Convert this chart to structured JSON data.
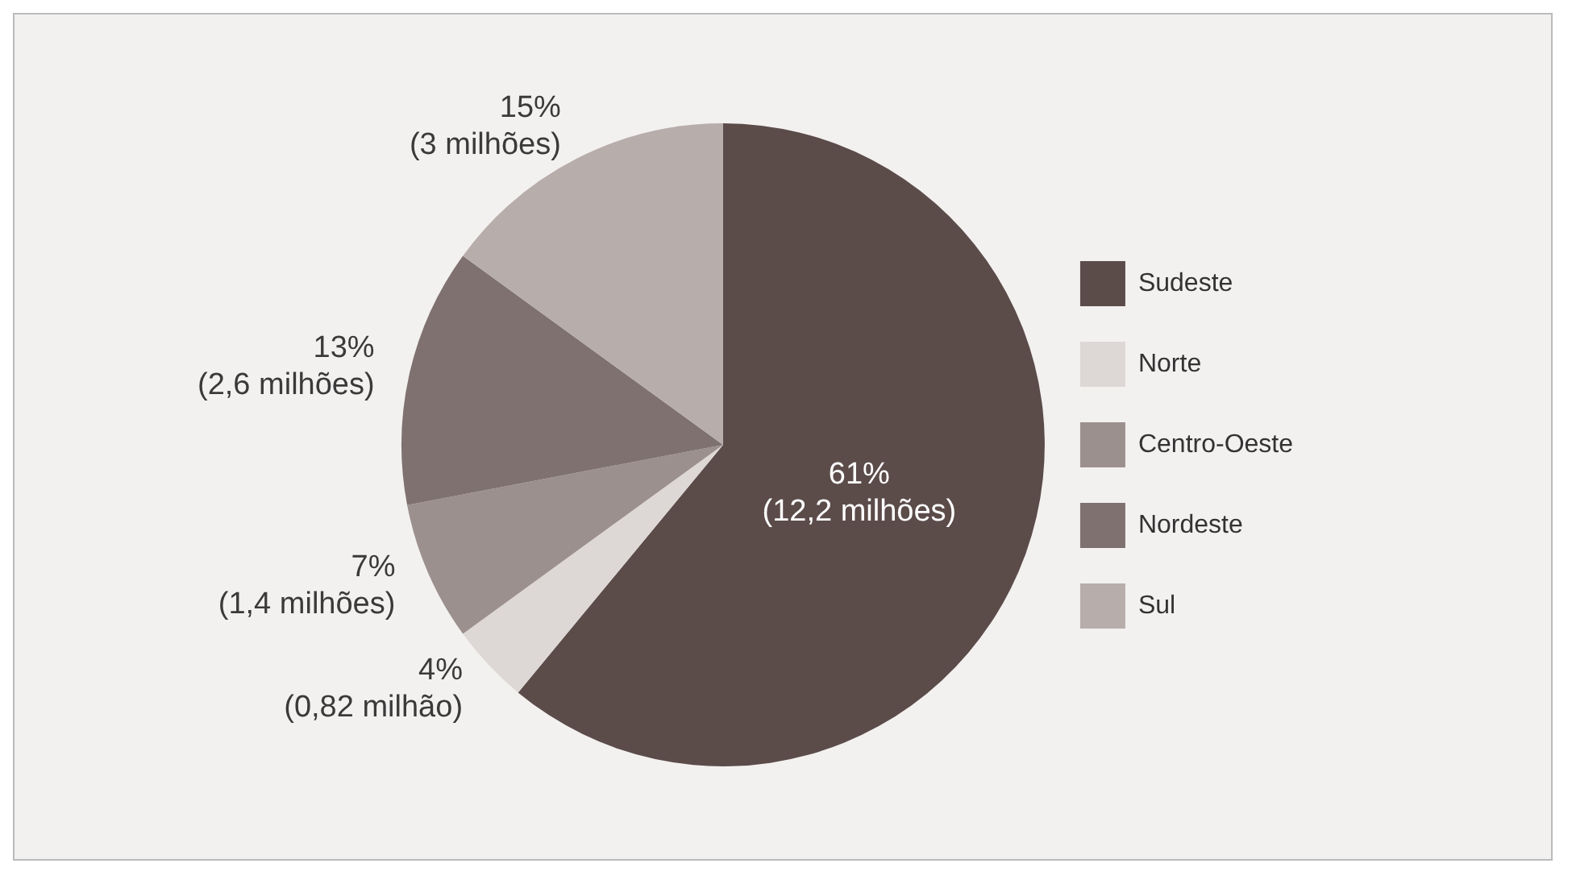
{
  "chart_data": {
    "type": "pie",
    "categories": [
      "Sudeste",
      "Norte",
      "Centro-Oeste",
      "Nordeste",
      "Sul"
    ],
    "values": [
      61,
      4,
      7,
      13,
      15
    ],
    "colors": [
      "#5b4c4a",
      "#ddd7d5",
      "#9c908e",
      "#7e716f",
      "#b7adab"
    ],
    "value_labels": [
      "61%\n(12,2 milhões)",
      "4%\n(0,82 milhão)",
      "7%\n(1,4 milhões)",
      "13%\n(2,6 milhões)",
      "15%\n(3 milhões)"
    ],
    "legend": "right"
  }
}
